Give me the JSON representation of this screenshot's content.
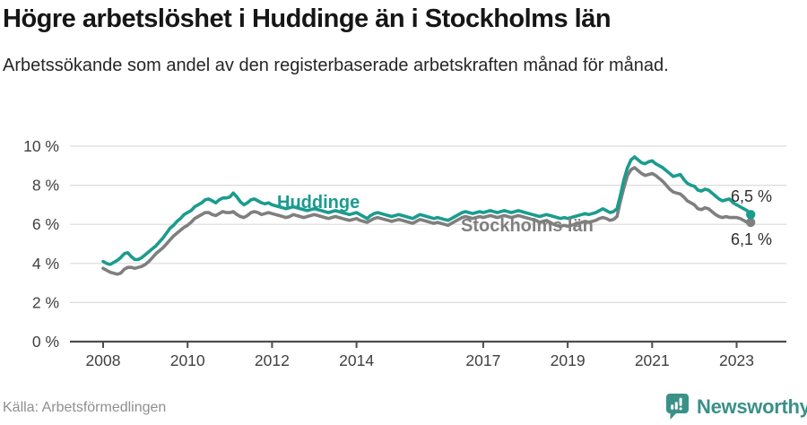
{
  "header": {
    "title": "Högre arbetslöshet i Huddinge än i Stockholms län",
    "subtitle": "Arbetssökande som andel av den registerbaserade arbetskraften månad för månad."
  },
  "footer": {
    "source": "Källa: Arbetsförmedlingen",
    "brand": "Newsworthy"
  },
  "colors": {
    "huddinge_line": "#1a9c8e",
    "stockholm_line": "#7f7f7f",
    "brand_teal": "#3a9188",
    "gridline": "#dcdcdc",
    "axis": "#4d4d4d",
    "tick_text": "#404040",
    "end_label_text": "#2e2e2e",
    "source_text": "#8f8f8f"
  },
  "chart_data": {
    "type": "line",
    "title": "Högre arbetslöshet i Huddinge än i Stockholms län",
    "xlabel": "",
    "ylabel": "",
    "x_start": 2008,
    "x_resolution": "monthly",
    "xlim": [
      2007.2,
      2024.3
    ],
    "ylim": [
      0,
      10
    ],
    "grid": "horizontal",
    "legend_position": "inline-labels",
    "y_tick_values": [
      10,
      8,
      6,
      4,
      2,
      0
    ],
    "y_tick_labels": [
      "10 %",
      "8 %",
      "6 %",
      "4 %",
      "2 %",
      "0 %"
    ],
    "x_tick_values": [
      2008,
      2010,
      2012,
      2014,
      2017,
      2019,
      2021,
      2023
    ],
    "x_tick_labels": [
      "2008",
      "2010",
      "2012",
      "2014",
      "2017",
      "2019",
      "2021",
      "2023"
    ],
    "series": [
      {
        "name": "Huddinge",
        "color": "#1a9c8e",
        "end_label": "6,5 %",
        "values": [
          4.1,
          4.0,
          3.95,
          4.05,
          4.15,
          4.3,
          4.5,
          4.55,
          4.35,
          4.2,
          4.2,
          4.3,
          4.45,
          4.6,
          4.75,
          4.9,
          5.1,
          5.3,
          5.55,
          5.8,
          5.95,
          6.15,
          6.3,
          6.5,
          6.6,
          6.7,
          6.9,
          7.0,
          7.1,
          7.25,
          7.3,
          7.2,
          7.1,
          7.25,
          7.35,
          7.35,
          7.4,
          7.6,
          7.4,
          7.15,
          7.0,
          7.1,
          7.25,
          7.3,
          7.2,
          7.1,
          7.05,
          7.1,
          7.0,
          6.95,
          6.9,
          6.85,
          6.8,
          6.85,
          6.9,
          6.85,
          6.8,
          6.75,
          6.7,
          6.75,
          6.8,
          6.75,
          6.7,
          6.65,
          6.6,
          6.65,
          6.7,
          6.65,
          6.6,
          6.55,
          6.5,
          6.55,
          6.6,
          6.5,
          6.4,
          6.3,
          6.45,
          6.55,
          6.6,
          6.55,
          6.5,
          6.45,
          6.4,
          6.45,
          6.5,
          6.45,
          6.4,
          6.35,
          6.3,
          6.4,
          6.5,
          6.45,
          6.4,
          6.35,
          6.3,
          6.35,
          6.3,
          6.25,
          6.2,
          6.3,
          6.4,
          6.5,
          6.6,
          6.65,
          6.6,
          6.55,
          6.6,
          6.65,
          6.6,
          6.65,
          6.7,
          6.65,
          6.6,
          6.65,
          6.7,
          6.65,
          6.6,
          6.65,
          6.7,
          6.65,
          6.6,
          6.55,
          6.5,
          6.45,
          6.4,
          6.45,
          6.5,
          6.45,
          6.4,
          6.35,
          6.3,
          6.35,
          6.3,
          6.35,
          6.4,
          6.45,
          6.5,
          6.55,
          6.5,
          6.55,
          6.6,
          6.7,
          6.8,
          6.7,
          6.6,
          6.65,
          6.8,
          7.5,
          8.3,
          8.9,
          9.3,
          9.45,
          9.3,
          9.15,
          9.1,
          9.2,
          9.25,
          9.1,
          9.0,
          8.9,
          8.75,
          8.6,
          8.45,
          8.5,
          8.55,
          8.3,
          8.1,
          8.0,
          7.95,
          7.75,
          7.7,
          7.8,
          7.75,
          7.6,
          7.45,
          7.3,
          7.2,
          7.25,
          7.3,
          7.1,
          7.0,
          6.9,
          6.8,
          6.7,
          6.5
        ]
      },
      {
        "name": "Stockholms län",
        "color": "#7f7f7f",
        "end_label": "6,1 %",
        "values": [
          3.75,
          3.65,
          3.55,
          3.5,
          3.45,
          3.5,
          3.7,
          3.8,
          3.8,
          3.75,
          3.8,
          3.85,
          3.95,
          4.1,
          4.3,
          4.5,
          4.65,
          4.8,
          5.0,
          5.2,
          5.4,
          5.55,
          5.7,
          5.85,
          5.95,
          6.1,
          6.3,
          6.4,
          6.5,
          6.6,
          6.6,
          6.5,
          6.45,
          6.55,
          6.65,
          6.6,
          6.6,
          6.65,
          6.5,
          6.4,
          6.35,
          6.45,
          6.6,
          6.65,
          6.6,
          6.5,
          6.55,
          6.6,
          6.55,
          6.5,
          6.45,
          6.4,
          6.35,
          6.4,
          6.5,
          6.45,
          6.4,
          6.35,
          6.4,
          6.45,
          6.5,
          6.45,
          6.4,
          6.35,
          6.3,
          6.35,
          6.4,
          6.35,
          6.3,
          6.25,
          6.2,
          6.25,
          6.3,
          6.2,
          6.15,
          6.1,
          6.2,
          6.3,
          6.35,
          6.3,
          6.25,
          6.2,
          6.15,
          6.2,
          6.25,
          6.2,
          6.15,
          6.1,
          6.05,
          6.15,
          6.25,
          6.2,
          6.15,
          6.1,
          6.05,
          6.1,
          6.05,
          6.0,
          5.95,
          6.05,
          6.15,
          6.25,
          6.35,
          6.4,
          6.35,
          6.3,
          6.35,
          6.4,
          6.35,
          6.4,
          6.45,
          6.4,
          6.35,
          6.4,
          6.45,
          6.4,
          6.35,
          6.4,
          6.45,
          6.4,
          6.35,
          6.3,
          6.25,
          6.2,
          6.1,
          6.15,
          6.2,
          6.1,
          6.0,
          5.95,
          5.9,
          5.95,
          5.9,
          5.95,
          6.0,
          6.05,
          6.1,
          6.15,
          6.1,
          6.15,
          6.2,
          6.3,
          6.35,
          6.3,
          6.2,
          6.25,
          6.4,
          7.2,
          7.9,
          8.5,
          8.8,
          8.9,
          8.75,
          8.6,
          8.5,
          8.55,
          8.6,
          8.5,
          8.35,
          8.2,
          8.0,
          7.8,
          7.65,
          7.6,
          7.55,
          7.4,
          7.2,
          7.1,
          7.0,
          6.8,
          6.75,
          6.85,
          6.8,
          6.65,
          6.5,
          6.4,
          6.35,
          6.4,
          6.35,
          6.35,
          6.35,
          6.3,
          6.2,
          6.1,
          6.1
        ]
      }
    ]
  }
}
